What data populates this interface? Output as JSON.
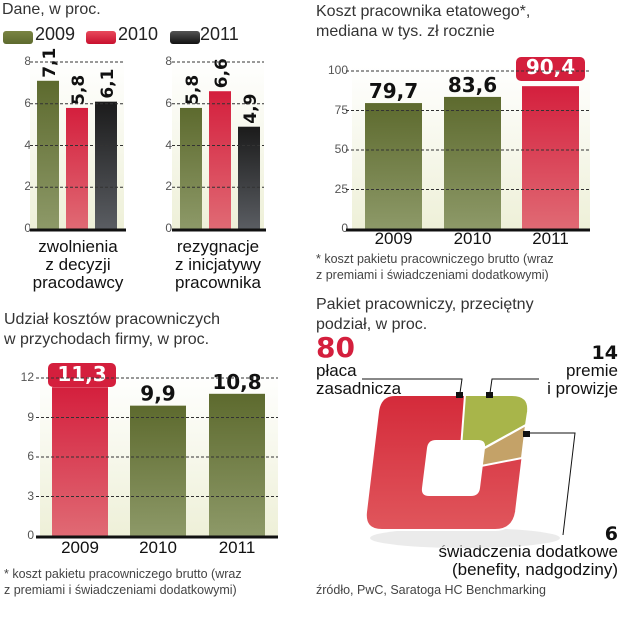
{
  "colors": {
    "olive": "#5d6a2e",
    "olive_light": "#8d9968",
    "red": "#d41f3d",
    "red_light": "#e06a74",
    "black": "#1b1b1b",
    "black_light": "#5a5d62",
    "plot_bg": "#eef0d8",
    "green_slice": "#a8b54a",
    "tan_slice": "#c4a268",
    "pie_red": "#d9333f"
  },
  "chart_data": [
    {
      "id": "turnover",
      "type": "bar",
      "title": "Dane, w proc.",
      "legend": [
        "2009",
        "2010",
        "2011"
      ],
      "legend_position": "top-left",
      "categories": [
        "zwolnienia z decyzji pracodawcy",
        "rezygnacje z inicjatywy pracownika"
      ],
      "category_lines": [
        [
          "zwolnienia",
          "z decyzji",
          "pracodawcy"
        ],
        [
          "rezygnacje",
          "z  inicjatywy",
          "pracownika"
        ]
      ],
      "series": [
        {
          "name": "2009",
          "values": [
            7.1,
            5.8
          ],
          "labels": [
            "7,1",
            "5,8"
          ]
        },
        {
          "name": "2010",
          "values": [
            5.8,
            6.6
          ],
          "labels": [
            "5,8",
            "6,6"
          ]
        },
        {
          "name": "2011",
          "values": [
            6.1,
            4.9
          ],
          "labels": [
            "6,1",
            "4,9"
          ]
        }
      ],
      "ylim": [
        0,
        8
      ],
      "yticks": [
        "0",
        "2",
        "4",
        "6",
        "8"
      ],
      "grid": true
    },
    {
      "id": "employee-cost",
      "type": "bar",
      "title": "Koszt pracownika etatowego*,",
      "subtitle": "mediana w tys. zł rocznie",
      "categories": [
        "2009",
        "2010",
        "2011"
      ],
      "values": [
        79.7,
        83.6,
        90.4
      ],
      "labels": [
        "79,7",
        "83,6",
        "90,4"
      ],
      "highlight": "2011",
      "ylim": [
        0,
        100
      ],
      "yticks": [
        "0",
        "25",
        "50",
        "75",
        "100"
      ],
      "grid": true,
      "note_lines": [
        "* koszt pakietu pracowniczego brutto (wraz",
        "z premiami i świadczeniami dodatkowymi)"
      ]
    },
    {
      "id": "cost-share",
      "type": "bar",
      "title": "Udział kosztów pracowniczych",
      "subtitle": "w przychodach firmy, w proc.",
      "categories": [
        "2009",
        "2010",
        "2011"
      ],
      "values": [
        11.3,
        9.9,
        10.8
      ],
      "labels": [
        "11,3",
        "9,9",
        "10,8"
      ],
      "highlight": "2009",
      "ylim": [
        0,
        12
      ],
      "yticks": [
        "0",
        "3",
        "6",
        "9",
        "12"
      ],
      "grid": true,
      "note_lines": [
        "* koszt pakietu pracowniczego brutto (wraz",
        "z premiami i świadczeniami dodatkowymi)"
      ]
    },
    {
      "id": "package-split",
      "type": "pie",
      "title": "Pakiet pracowniczy, przeciętny",
      "subtitle": "podział, w proc.",
      "slices": [
        {
          "name": "płaca zasadnicza",
          "value": 80,
          "label": "80",
          "lines": [
            "płaca",
            "zasadnicza"
          ]
        },
        {
          "name": "premie i prowizje",
          "value": 14,
          "label": "14",
          "lines": [
            "premie",
            "i prowizje"
          ]
        },
        {
          "name": "świadczenia dodatkowe (benefity, nadgodziny)",
          "value": 6,
          "label": "6",
          "lines": [
            "świadczenia dodatkowe",
            "(benefity, nadgodziny)"
          ]
        }
      ],
      "source": "źródło, PwC, Saratoga HC Benchmarking"
    }
  ]
}
